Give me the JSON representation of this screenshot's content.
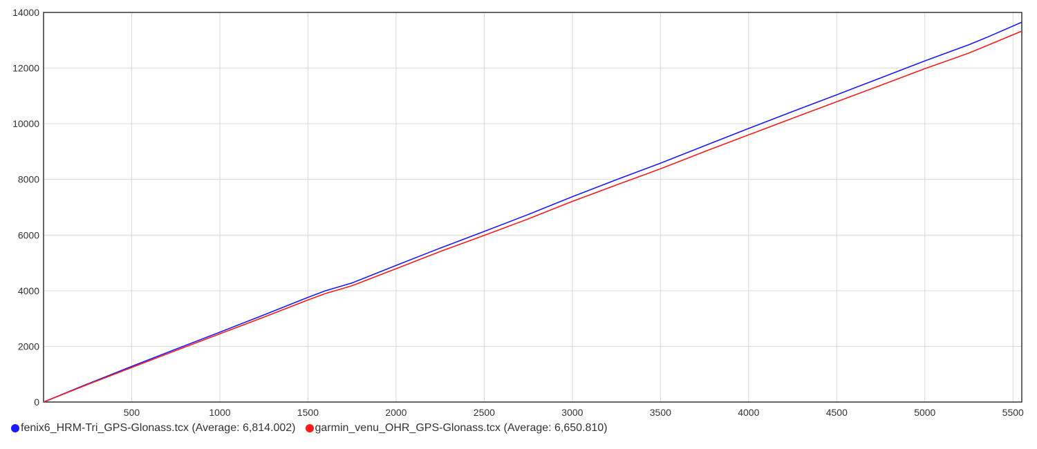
{
  "chart_data": {
    "type": "line",
    "title": "",
    "xlabel": "",
    "ylabel": "",
    "xlim": [
      0,
      5550
    ],
    "ylim": [
      0,
      14000
    ],
    "grid": true,
    "legend_placement": "bottom-left",
    "x_ticks": [
      500,
      1000,
      1500,
      2000,
      2500,
      3000,
      3500,
      4000,
      4500,
      5000,
      5500
    ],
    "x_tick_labels": [
      "500",
      "1000",
      "1500",
      "2000",
      "2500",
      "3000",
      "3500",
      "4000",
      "4500",
      "5000",
      "5500"
    ],
    "y_ticks": [
      0,
      2000,
      4000,
      6000,
      8000,
      10000,
      12000,
      14000
    ],
    "y_tick_labels": [
      "0",
      "2000",
      "4000",
      "6000",
      "8000",
      "10000",
      "12000",
      "14000"
    ],
    "x": [
      0,
      250,
      500,
      750,
      1000,
      1250,
      1500,
      1600,
      1750,
      2000,
      2250,
      2500,
      2750,
      3000,
      3250,
      3500,
      3750,
      4000,
      4250,
      4500,
      4750,
      5000,
      5250,
      5350,
      5550
    ],
    "series": [
      {
        "name": "fenix6_HRM-Tri_GPS-Glonass.tcx",
        "legend_label": "fenix6_HRM-Tri_GPS-Glonass.tcx (Average: 6,814.002)",
        "color": "#1a1aff",
        "values": [
          0,
          650,
          1280,
          1900,
          2510,
          3130,
          3760,
          4000,
          4280,
          4910,
          5530,
          6130,
          6740,
          7380,
          7990,
          8580,
          9210,
          9830,
          10440,
          11040,
          11650,
          12260,
          12840,
          13100,
          13650
        ]
      },
      {
        "name": "garmin_venu_OHR_GPS-Glonass.tcx",
        "legend_label": "garmin_venu_OHR_GPS-Glonass.tcx (Average: 6,650.810)",
        "color": "#ff1a1a",
        "values": [
          0,
          630,
          1240,
          1850,
          2450,
          3050,
          3670,
          3900,
          4180,
          4790,
          5410,
          5990,
          6580,
          7210,
          7800,
          8380,
          9000,
          9600,
          10200,
          10790,
          11380,
          11980,
          12540,
          12800,
          13330
        ]
      }
    ]
  }
}
